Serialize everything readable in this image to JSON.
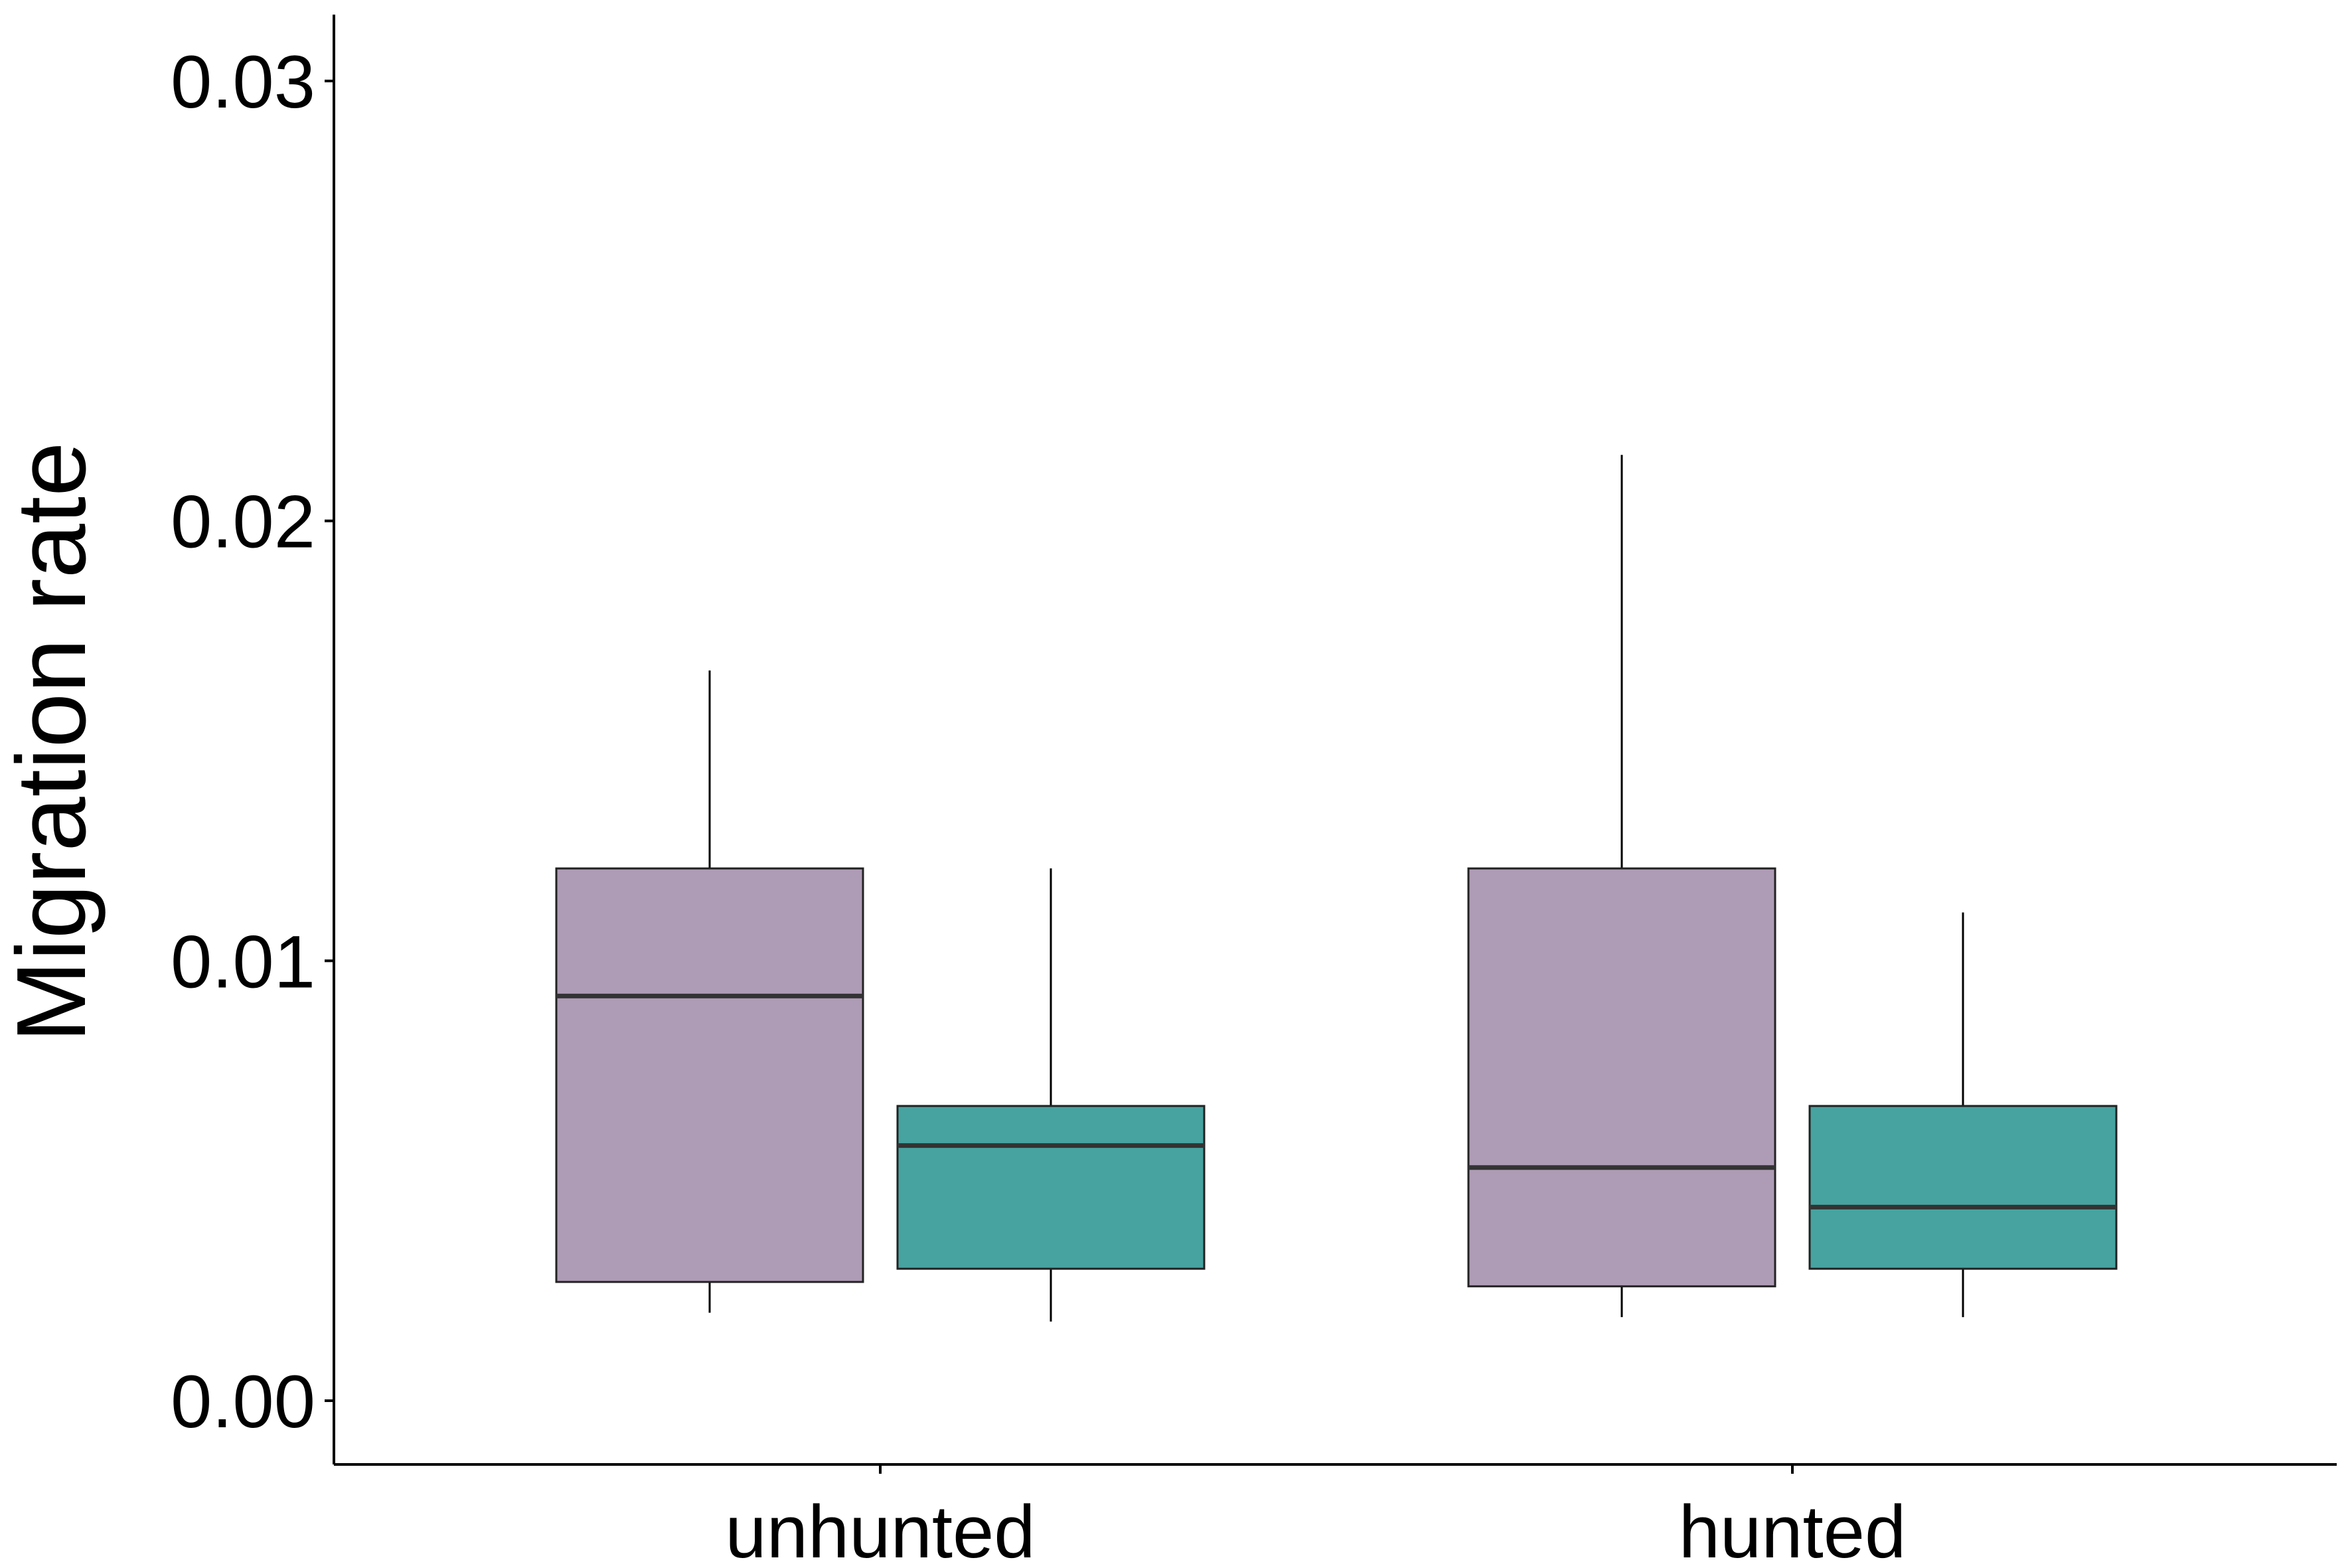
{
  "chart_data": {
    "type": "boxplot",
    "title": "",
    "xlabel": "",
    "ylabel": "Migration rate",
    "ylim": [
      -0.0015,
      0.0315
    ],
    "y_ticks": [
      "0.00",
      "0.01",
      "0.02",
      "0.03"
    ],
    "y_tick_values": [
      0.0,
      0.01,
      0.02,
      0.03
    ],
    "categories": [
      "unhunted",
      "hunted"
    ],
    "grid": false,
    "legend": "none",
    "series": [
      {
        "color": "#ae9bb5",
        "boxes": [
          {
            "category": "unhunted",
            "whisker_low": 0.002,
            "q1": 0.0027,
            "median": 0.0092,
            "q3": 0.0121,
            "whisker_high": 0.0166
          },
          {
            "category": "hunted",
            "whisker_low": 0.0019,
            "q1": 0.0026,
            "median": 0.0053,
            "q3": 0.0121,
            "whisker_high": 0.0215
          }
        ]
      },
      {
        "color": "#46a3a0",
        "boxes": [
          {
            "category": "unhunted",
            "whisker_low": 0.0018,
            "q1": 0.003,
            "median": 0.0058,
            "q3": 0.0067,
            "whisker_high": 0.0121
          },
          {
            "category": "hunted",
            "whisker_low": 0.0019,
            "q1": 0.003,
            "median": 0.0044,
            "q3": 0.0067,
            "whisker_high": 0.0111
          }
        ]
      }
    ]
  }
}
